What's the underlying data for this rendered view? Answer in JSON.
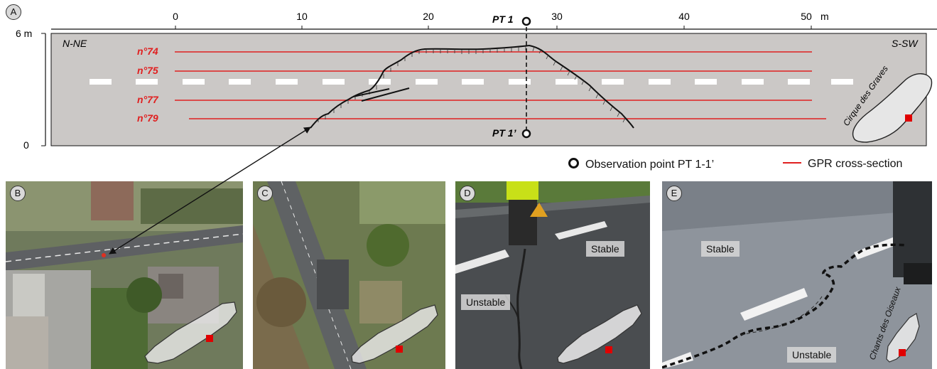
{
  "panels": {
    "a": "A",
    "b": "B",
    "c": "C",
    "d": "D",
    "e": "E"
  },
  "schematic": {
    "x_ticks": [
      "0",
      "10",
      "20",
      "30",
      "40",
      "50"
    ],
    "x_unit": "m",
    "y_top": "6 m",
    "y_bottom": "0",
    "dir_left": "N-NE",
    "dir_right": "S-SW",
    "profiles": [
      "n°74",
      "n°75",
      "n°77",
      "n°79"
    ],
    "pt_top": "PT 1",
    "pt_bottom": "PT 1’",
    "inset_label": "Cirque des Graves"
  },
  "legend": {
    "observation": "Observation point PT 1-1’",
    "gpr": "GPR cross-section"
  },
  "photos": {
    "d_stable": "Stable",
    "d_unstable": "Unstable",
    "e_stable": "Stable",
    "e_unstable": "Unstable",
    "e_inset_label": "Chants des Oiseaux"
  },
  "colors": {
    "gpr": "#e02020",
    "road": "#cbc8c6",
    "marker": "#e00000"
  }
}
